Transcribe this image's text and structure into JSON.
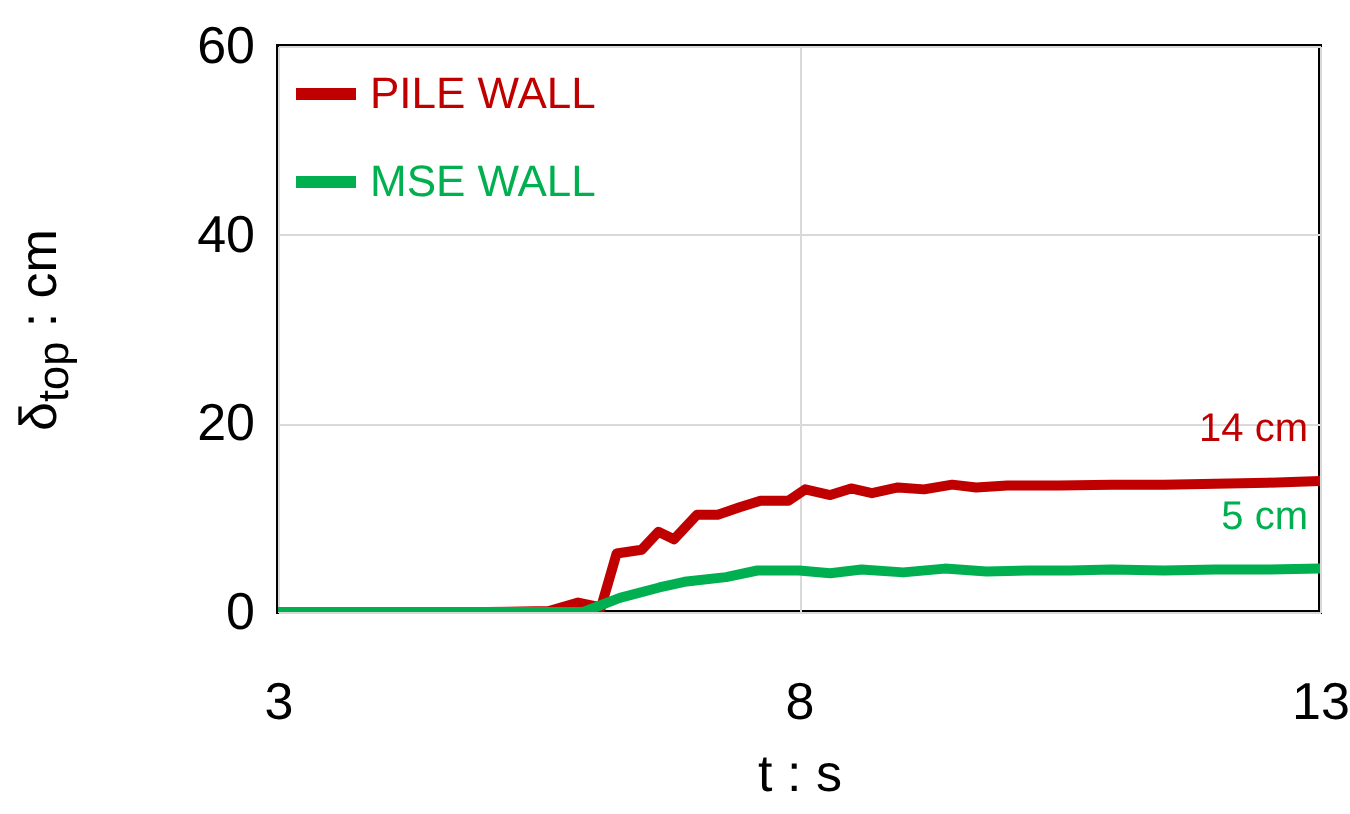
{
  "chart_data": {
    "type": "line",
    "xlabel": "t : s",
    "ylabel": "δ$_{top}$ : cm",
    "xlim": [
      3,
      13
    ],
    "ylim": [
      0,
      60
    ],
    "xticks": [
      3,
      8,
      13
    ],
    "yticks": [
      0,
      20,
      40,
      60
    ],
    "grid": true,
    "legend": "top left",
    "line_style": "solid",
    "marker": "none",
    "series": [
      {
        "name": "PILE WALL",
        "color": "#c00000",
        "x": [
          3,
          4,
          5,
          5.6,
          5.88,
          6.1,
          6.25,
          6.49,
          6.65,
          6.8,
          7.02,
          7.22,
          7.43,
          7.63,
          7.9,
          8.06,
          8.3,
          8.5,
          8.7,
          8.95,
          9.2,
          9.47,
          9.7,
          10,
          10.5,
          11,
          11.5,
          12,
          12.5,
          13
        ],
        "values": [
          0,
          0,
          0,
          0.1,
          1,
          0.5,
          6.2,
          6.6,
          8.5,
          7.7,
          10.3,
          10.3,
          11.1,
          11.8,
          11.8,
          13,
          12.4,
          13.1,
          12.6,
          13.2,
          13,
          13.5,
          13.2,
          13.4,
          13.4,
          13.5,
          13.5,
          13.6,
          13.7,
          13.9
        ]
      },
      {
        "name": "MSE WALL",
        "color": "#00b050",
        "x": [
          3,
          4,
          5,
          5.93,
          6.28,
          6.66,
          6.9,
          7.3,
          7.6,
          8,
          8.3,
          8.6,
          9,
          9.4,
          9.8,
          10.2,
          10.6,
          11,
          11.5,
          12,
          12.5,
          13
        ],
        "values": [
          0,
          0,
          0,
          0,
          1.5,
          2.6,
          3.2,
          3.7,
          4.4,
          4.4,
          4.1,
          4.5,
          4.2,
          4.6,
          4.3,
          4.4,
          4.4,
          4.5,
          4.4,
          4.5,
          4.5,
          4.6
        ]
      }
    ],
    "annotations": [
      {
        "text": "14 cm",
        "x": 13,
        "y": 13.9
      },
      {
        "text": "5 cm",
        "x": 13,
        "y": 4.6
      }
    ]
  }
}
